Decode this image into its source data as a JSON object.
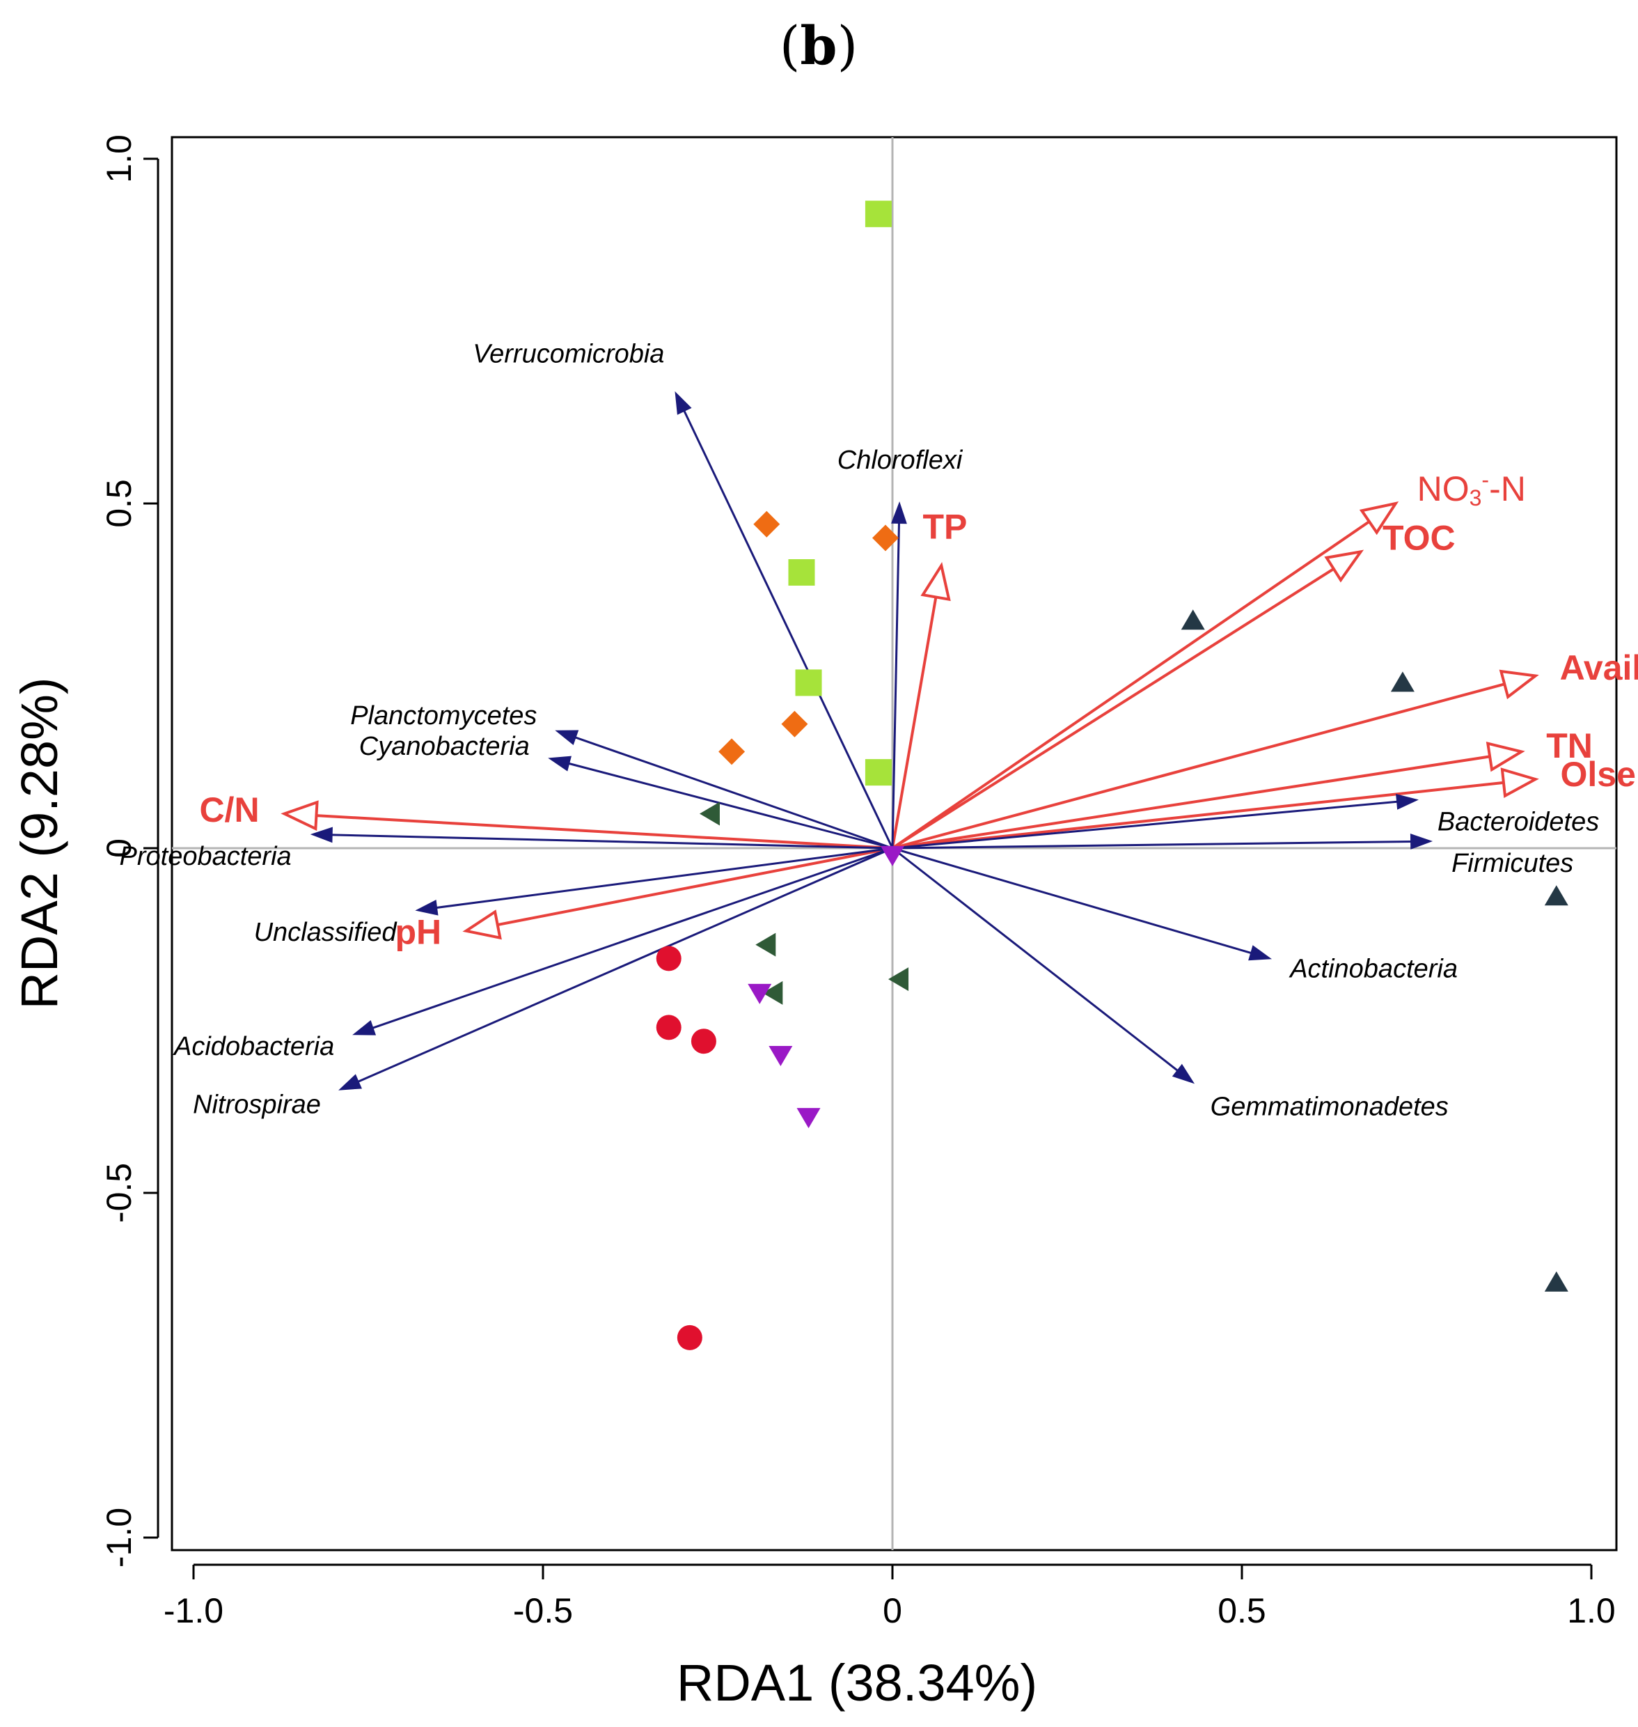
{
  "chart_data": {
    "type": "scatter",
    "panel_label": {
      "open": "(",
      "letter": "b",
      "close": ")"
    },
    "title": "",
    "xlabel": "RDA1 (38.34%)",
    "ylabel": "RDA2 (9.28%)",
    "xlim": [
      -1.0,
      1.0
    ],
    "ylim": [
      -1.0,
      1.0
    ],
    "x_ticks": [
      {
        "value": -1.0,
        "label": "-1.0"
      },
      {
        "value": -0.5,
        "label": "-0.5"
      },
      {
        "value": 0.0,
        "label": "0"
      },
      {
        "value": 0.5,
        "label": "0.5"
      },
      {
        "value": 1.0,
        "label": "1.0"
      }
    ],
    "y_ticks": [
      {
        "value": -1.0,
        "label": "-1.0"
      },
      {
        "value": -0.5,
        "label": "-0.5"
      },
      {
        "value": 0.0,
        "label": "0"
      },
      {
        "value": 0.5,
        "label": "0.5"
      },
      {
        "value": 1.0,
        "label": "1.0"
      }
    ],
    "zero_lines": true,
    "colors": {
      "species_arrow": "#1a1a7a",
      "env_arrow": "#e8413c",
      "zero_line": "#b4b4b4"
    },
    "species_arrows": [
      {
        "label": "Verrucomicrobia",
        "x": -0.31,
        "y": 0.66
      },
      {
        "label": "Chloroflexi",
        "x": 0.01,
        "y": 0.5
      },
      {
        "label": "Planctomycetes",
        "x": -0.48,
        "y": 0.17
      },
      {
        "label": "Cyanobacteria",
        "x": -0.49,
        "y": 0.13
      },
      {
        "label": "Proteobacteria",
        "x": -0.83,
        "y": 0.02
      },
      {
        "label": "Unclassified",
        "x": -0.68,
        "y": -0.09
      },
      {
        "label": "Acidobacteria",
        "x": -0.77,
        "y": -0.27
      },
      {
        "label": "Nitrospirae",
        "x": -0.79,
        "y": -0.35
      },
      {
        "label": "Bacteroidetes",
        "x": 0.75,
        "y": 0.07
      },
      {
        "label": "Firmicutes",
        "x": 0.77,
        "y": 0.01
      },
      {
        "label": "Actinobacteria",
        "x": 0.54,
        "y": -0.16
      },
      {
        "label": "Gemmatimonadetes",
        "x": 0.43,
        "y": -0.34
      }
    ],
    "env_arrows": [
      {
        "label": "NO",
        "sub": "3",
        "sup": "-",
        "suffix": "-N",
        "x": 0.72,
        "y": 0.5
      },
      {
        "label": "TOC",
        "x": 0.67,
        "y": 0.43
      },
      {
        "label": "TP",
        "x": 0.07,
        "y": 0.41
      },
      {
        "label": "Available K",
        "x": 0.92,
        "y": 0.25
      },
      {
        "label": "TN",
        "x": 0.9,
        "y": 0.14
      },
      {
        "label": "Olsen-P",
        "x": 0.92,
        "y": 0.1
      },
      {
        "label": "C/N",
        "x": -0.87,
        "y": 0.05
      },
      {
        "label": "pH",
        "x": -0.61,
        "y": -0.12
      }
    ],
    "samples": [
      {
        "group": "square",
        "shape": "square",
        "color": "#a6e33a",
        "points": [
          [
            -0.02,
            0.92
          ],
          [
            -0.13,
            0.4
          ],
          [
            -0.12,
            0.24
          ],
          [
            -0.02,
            0.11
          ]
        ]
      },
      {
        "group": "diamond",
        "shape": "diamond",
        "color": "#ef6c13",
        "points": [
          [
            -0.18,
            0.47
          ],
          [
            -0.01,
            0.45
          ],
          [
            -0.14,
            0.18
          ],
          [
            -0.23,
            0.14
          ]
        ]
      },
      {
        "group": "triangle-up",
        "shape": "triangle-up",
        "color": "#243845",
        "points": [
          [
            0.43,
            0.33
          ],
          [
            0.73,
            0.24
          ],
          [
            0.95,
            -0.07
          ],
          [
            0.95,
            -0.63
          ]
        ]
      },
      {
        "group": "triangle-left",
        "shape": "triangle-left",
        "color": "#2f5a37",
        "points": [
          [
            -0.26,
            0.05
          ],
          [
            -0.18,
            -0.14
          ],
          [
            -0.17,
            -0.21
          ],
          [
            0.01,
            -0.19
          ]
        ]
      },
      {
        "group": "triangle-down",
        "shape": "triangle-down",
        "color": "#9a19c6",
        "points": [
          [
            -0.19,
            -0.21
          ],
          [
            -0.16,
            -0.3
          ],
          [
            -0.12,
            -0.39
          ],
          [
            0.0,
            -0.01
          ]
        ]
      },
      {
        "group": "circle",
        "shape": "circle",
        "color": "#e0102e",
        "points": [
          [
            -0.32,
            -0.16
          ],
          [
            -0.32,
            -0.26
          ],
          [
            -0.27,
            -0.28
          ],
          [
            -0.29,
            -0.71
          ]
        ]
      }
    ]
  }
}
